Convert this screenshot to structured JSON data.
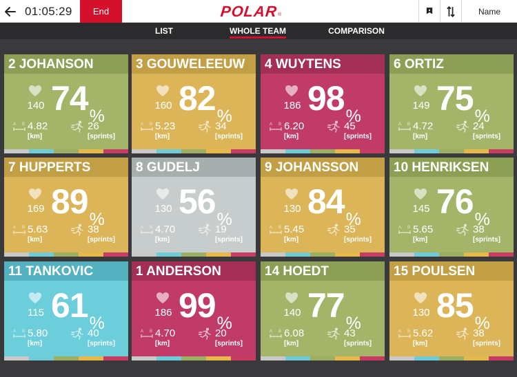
{
  "topbar": {
    "timer": "01:05:29",
    "end_label": "End",
    "logo": "POLAR",
    "logo_mark": "®",
    "sort_label": "Name"
  },
  "tabs": [
    {
      "label": "LIST",
      "active": false
    },
    {
      "label": "WHOLE TEAM",
      "active": true
    },
    {
      "label": "COMPARISON",
      "active": false
    }
  ],
  "units": {
    "distance": "[km]",
    "sprints": "[sprints]",
    "percent": "%"
  },
  "zone_colors": [
    "#c8c8c8",
    "#6fcbd8",
    "#9bae62",
    "#e6b84a",
    "#c83c64"
  ],
  "colors": {
    "green_body": "#a4b56a",
    "green_header": "#8d9f55",
    "yellow_body": "#dbb558",
    "yellow_header": "#c29e44",
    "red_body": "#c13b69",
    "red_header": "#a32f56",
    "gray_body": "#c6cdcc",
    "gray_header": "#a7aeae",
    "blue_body": "#6ccedb",
    "blue_header": "#54b2c0"
  },
  "players": [
    {
      "number": "2",
      "name": "JOHANSON",
      "heart_rate": "140",
      "percent": "74",
      "distance": "4.82",
      "sprints": "26",
      "zone": "green"
    },
    {
      "number": "3",
      "name": "GOUWELEEUW",
      "heart_rate": "160",
      "percent": "82",
      "distance": "5.23",
      "sprints": "34",
      "zone": "yellow"
    },
    {
      "number": "4",
      "name": "WUYTENS",
      "heart_rate": "186",
      "percent": "98",
      "distance": "6.20",
      "sprints": "45",
      "zone": "red"
    },
    {
      "number": "6",
      "name": "ORTIZ",
      "heart_rate": "149",
      "percent": "75",
      "distance": "4.72",
      "sprints": "24",
      "zone": "green"
    },
    {
      "number": "7",
      "name": "HUPPERTS",
      "heart_rate": "169",
      "percent": "89",
      "distance": "5.63",
      "sprints": "38",
      "zone": "yellow"
    },
    {
      "number": "8",
      "name": "GUDELJ",
      "heart_rate": "130",
      "percent": "56",
      "distance": "4.70",
      "sprints": "19",
      "zone": "gray"
    },
    {
      "number": "9",
      "name": "JOHANSSON",
      "heart_rate": "130",
      "percent": "84",
      "distance": "5.45",
      "sprints": "35",
      "zone": "yellow"
    },
    {
      "number": "10",
      "name": "HENRIKSEN",
      "heart_rate": "145",
      "percent": "76",
      "distance": "5.65",
      "sprints": "38",
      "zone": "green"
    },
    {
      "number": "11",
      "name": "TANKOVIC",
      "heart_rate": "115",
      "percent": "61",
      "distance": "5.80",
      "sprints": "40",
      "zone": "blue"
    },
    {
      "number": "1",
      "name": "ANDERSON",
      "heart_rate": "186",
      "percent": "99",
      "distance": "4.70",
      "sprints": "20",
      "zone": "red"
    },
    {
      "number": "14",
      "name": "HOEDT",
      "heart_rate": "140",
      "percent": "77",
      "distance": "6.08",
      "sprints": "43",
      "zone": "green"
    },
    {
      "number": "15",
      "name": "POULSEN",
      "heart_rate": "130",
      "percent": "85",
      "distance": "5.62",
      "sprints": "38",
      "zone": "yellow"
    }
  ]
}
